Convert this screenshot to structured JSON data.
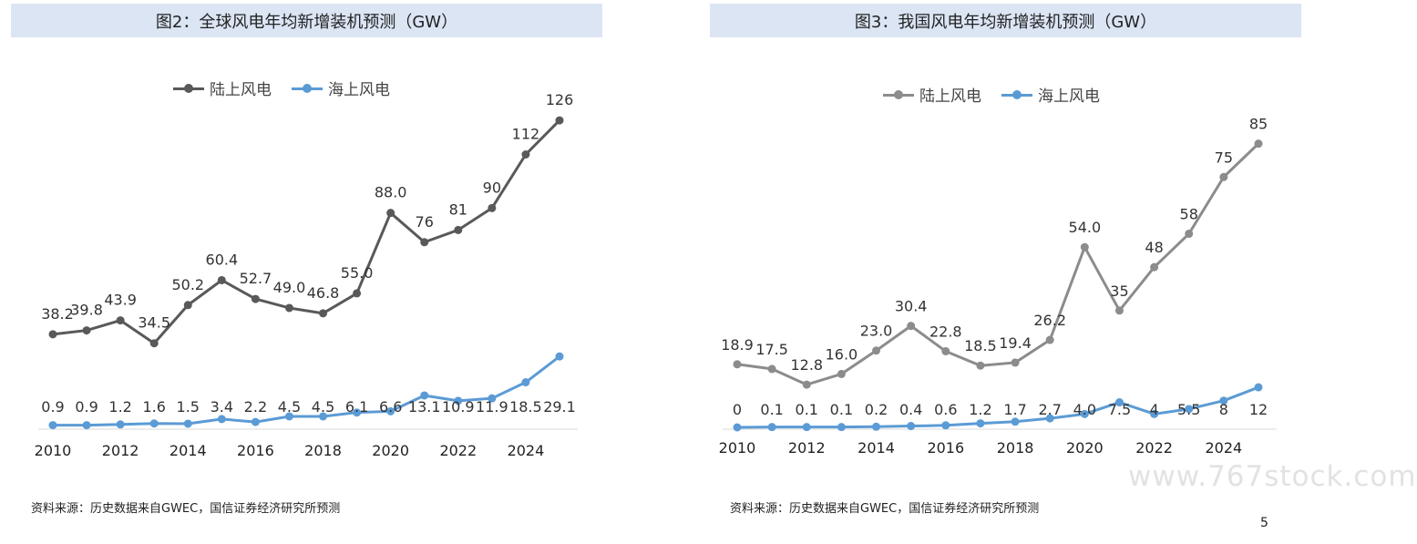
{
  "charts": [
    {
      "title": "图2：全球风电年均新增装机预测（GW）",
      "source": "资料来源：历史数据来自GWEC，国信证券经济研究所预测",
      "legend": [
        "陆上风电",
        "海上风电"
      ]
    },
    {
      "title": "图3：我国风电年均新增装机预测（GW）",
      "source": "资料来源：历史数据来自GWEC，国信证券经济研究所预测",
      "legend": [
        "陆上风电",
        "海上风电"
      ]
    }
  ],
  "colors": {
    "onshore_left": "#595959",
    "onshore_right": "#8c8c8c",
    "offshore": "#5b9bd5",
    "title_bg": "#dbe5f4"
  },
  "watermark": "www.767stock.com",
  "page_number": "5",
  "chart_data": [
    {
      "type": "line",
      "title": "图2：全球风电年均新增装机预测（GW）",
      "x": [
        2010,
        2011,
        2012,
        2013,
        2014,
        2015,
        2016,
        2017,
        2018,
        2019,
        2020,
        2021,
        2022,
        2023,
        2024,
        2025
      ],
      "xticks": [
        "2010",
        "2012",
        "2014",
        "2016",
        "2018",
        "2020",
        "2022",
        "2024"
      ],
      "ylim": [
        0,
        135
      ],
      "legend_position": "top",
      "grid": false,
      "series": [
        {
          "name": "陆上风电",
          "values": [
            38.2,
            39.8,
            43.9,
            34.5,
            50.2,
            60.4,
            52.7,
            49.0,
            46.8,
            55.0,
            88.0,
            76,
            81,
            90,
            112,
            126
          ],
          "labels": [
            "38.2",
            "39.8",
            "43.9",
            "34.5",
            "50.2",
            "60.4",
            "52.7",
            "49.0",
            "46.8",
            "55.0",
            "88.0",
            "76",
            "81",
            "90",
            "112",
            "126"
          ]
        },
        {
          "name": "海上风电",
          "values": [
            0.9,
            0.9,
            1.2,
            1.6,
            1.5,
            3.4,
            2.2,
            4.5,
            4.5,
            6.1,
            6.6,
            13.1,
            10.9,
            11.9,
            18.5,
            29.1
          ],
          "labels": [
            "0.9",
            "0.9",
            "1.2",
            "1.6",
            "1.5",
            "3.4",
            "2.2",
            "4.5",
            "4.5",
            "6.1",
            "6.6",
            "13.1",
            "10.9",
            "11.9",
            "18.5",
            "29.1"
          ]
        }
      ]
    },
    {
      "type": "line",
      "title": "图3：我国风电年均新增装机预测（GW）",
      "x": [
        2010,
        2011,
        2012,
        2013,
        2014,
        2015,
        2016,
        2017,
        2018,
        2019,
        2020,
        2021,
        2022,
        2023,
        2024,
        2025
      ],
      "xticks": [
        "2010",
        "2012",
        "2014",
        "2016",
        "2018",
        "2020",
        "2022",
        "2024"
      ],
      "ylim": [
        0,
        95
      ],
      "legend_position": "top",
      "grid": false,
      "series": [
        {
          "name": "陆上风电",
          "values": [
            18.9,
            17.5,
            12.8,
            16.0,
            23.0,
            30.4,
            22.8,
            18.5,
            19.4,
            26.2,
            54.0,
            35,
            48,
            58,
            75,
            85
          ],
          "labels": [
            "18.9",
            "17.5",
            "12.8",
            "16.0",
            "23.0",
            "30.4",
            "22.8",
            "18.5",
            "19.4",
            "26.2",
            "54.0",
            "35",
            "48",
            "58",
            "75",
            "85"
          ]
        },
        {
          "name": "海上风电",
          "values": [
            0,
            0.1,
            0.1,
            0.1,
            0.2,
            0.4,
            0.6,
            1.2,
            1.7,
            2.7,
            4.0,
            7.5,
            4,
            5.5,
            8,
            12
          ],
          "labels": [
            "0",
            "0.1",
            "0.1",
            "0.1",
            "0.2",
            "0.4",
            "0.6",
            "1.2",
            "1.7",
            "2.7",
            "4.0",
            "7.5",
            "4",
            "5.5",
            "8",
            "12"
          ]
        }
      ]
    }
  ]
}
